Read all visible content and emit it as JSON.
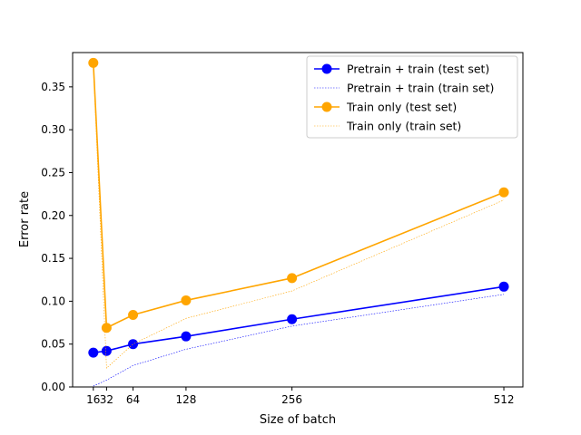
{
  "chart_data": {
    "type": "line",
    "title": "",
    "xlabel": "Size of batch",
    "ylabel": "Error rate",
    "xlim": [
      -9,
      535
    ],
    "ylim": [
      0,
      0.39
    ],
    "grid": false,
    "legend_position": "top-right",
    "xticks": [
      16,
      32,
      64,
      128,
      256,
      512
    ],
    "xtick_labels": [
      "16",
      "32",
      "64",
      "128",
      "256",
      "512"
    ],
    "yticks": [
      0.0,
      0.05,
      0.1,
      0.15,
      0.2,
      0.25,
      0.3,
      0.35
    ],
    "ytick_labels": [
      "0.00",
      "0.05",
      "0.10",
      "0.15",
      "0.20",
      "0.25",
      "0.30",
      "0.35"
    ],
    "x": [
      16,
      32,
      64,
      128,
      256,
      512
    ],
    "series": [
      {
        "name": "Pretrain + train (test set)",
        "values": [
          0.04,
          0.042,
          0.05,
          0.059,
          0.079,
          0.117
        ],
        "color": "#0000ff",
        "style": "solid",
        "markers": true
      },
      {
        "name": "Pretrain + train (train set)",
        "values": [
          0.001,
          0.008,
          0.025,
          0.044,
          0.071,
          0.108
        ],
        "color": "#0000ff",
        "style": "dotted",
        "markers": false
      },
      {
        "name": "Train only (test set)",
        "values": [
          0.378,
          0.069,
          0.084,
          0.101,
          0.127,
          0.227
        ],
        "color": "#ffa500",
        "style": "solid",
        "markers": true
      },
      {
        "name": "Train only (train set)",
        "values": [
          0.375,
          0.022,
          0.05,
          0.08,
          0.112,
          0.218
        ],
        "color": "#ffa500",
        "style": "dotted",
        "markers": false
      }
    ]
  }
}
